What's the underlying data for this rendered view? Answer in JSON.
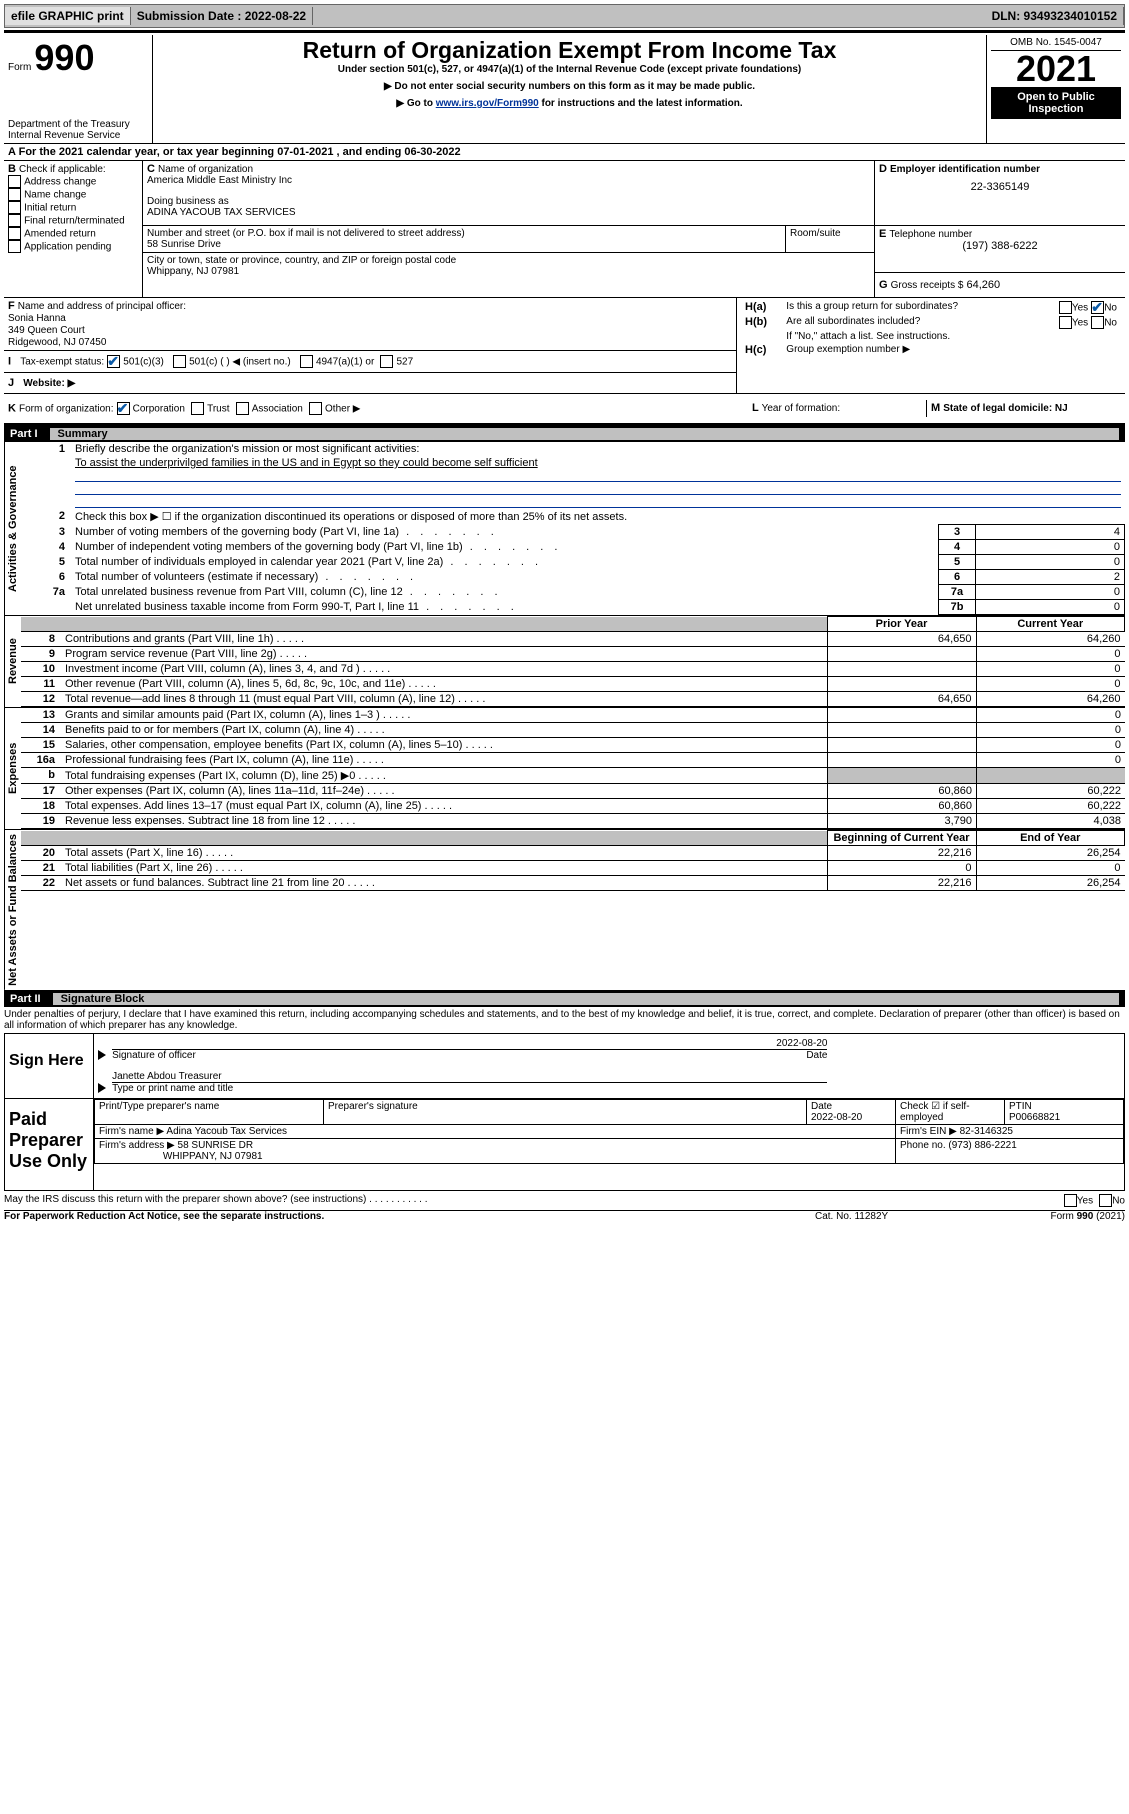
{
  "topbar": {
    "efile": "efile GRAPHIC print",
    "submission": "Submission Date : 2022-08-22",
    "dln": "DLN: 93493234010152"
  },
  "header": {
    "form_label": "Form",
    "form_no": "990",
    "dept": "Department of the Treasury",
    "irs": "Internal Revenue Service",
    "title": "Return of Organization Exempt From Income Tax",
    "sub1": "Under section 501(c), 527, or 4947(a)(1) of the Internal Revenue Code (except private foundations)",
    "sub2": "▶ Do not enter social security numbers on this form as it may be made public.",
    "sub3_pre": "▶ Go to ",
    "sub3_link": "www.irs.gov/Form990",
    "sub3_post": " for instructions and the latest information.",
    "omb": "OMB No. 1545-0047",
    "year": "2021",
    "open": "Open to Public Inspection"
  },
  "A": {
    "line": "For the 2021 calendar year, or tax year beginning 07-01-2021   , and ending 06-30-2022"
  },
  "B": {
    "head": "Check if applicable:",
    "opts": [
      "Address change",
      "Name change",
      "Initial return",
      "Final return/terminated",
      "Amended return",
      "Application pending"
    ]
  },
  "C": {
    "label": "Name of organization",
    "org": "America Middle East Ministry Inc",
    "dba_label": "Doing business as",
    "dba": "ADINA YACOUB TAX SERVICES",
    "street_label": "Number and street (or P.O. box if mail is not delivered to street address)",
    "street": "58 Sunrise Drive",
    "room_label": "Room/suite",
    "city_label": "City or town, state or province, country, and ZIP or foreign postal code",
    "city": "Whippany, NJ  07981"
  },
  "D": {
    "label": "Employer identification number",
    "val": "22-3365149"
  },
  "E": {
    "label": "Telephone number",
    "val": "(197) 388-6222"
  },
  "G": {
    "label": "Gross receipts $",
    "val": "64,260"
  },
  "F": {
    "label": "Name and address of principal officer:",
    "name": "Sonia Hanna",
    "addr1": "349 Queen Court",
    "addr2": "Ridgewood, NJ  07450"
  },
  "I": {
    "label": "Tax-exempt status:",
    "c3": "501(c)(3)",
    "c": "501(c) (  ) ◀ (insert no.)",
    "a": "4947(a)(1) or",
    "s": "527"
  },
  "J": {
    "label": "Website: ▶"
  },
  "H": {
    "a": "Is this a group return for subordinates?",
    "b": "Are all subordinates included?",
    "note": "If \"No,\" attach a list. See instructions.",
    "c": "Group exemption number ▶",
    "yes": "Yes",
    "no": "No"
  },
  "K": {
    "label": "Form of organization:",
    "opts": [
      "Corporation",
      "Trust",
      "Association",
      "Other ▶"
    ]
  },
  "L": {
    "label": "Year of formation:"
  },
  "M": {
    "label": "State of legal domicile: NJ"
  },
  "part1": {
    "pt": "Part I",
    "title": "Summary"
  },
  "summary": {
    "l1": "Briefly describe the organization's mission or most significant activities:",
    "mission": "To assist the underprivilged families in the US and in Egypt so they could become self sufficient",
    "l2": "Check this box ▶ ☐  if the organization discontinued its operations or disposed of more than 25% of its net assets.",
    "rows": [
      {
        "n": "3",
        "t": "Number of voting members of the governing body (Part VI, line 1a)",
        "box": "3",
        "v": "4"
      },
      {
        "n": "4",
        "t": "Number of independent voting members of the governing body (Part VI, line 1b)",
        "box": "4",
        "v": "0"
      },
      {
        "n": "5",
        "t": "Total number of individuals employed in calendar year 2021 (Part V, line 2a)",
        "box": "5",
        "v": "0"
      },
      {
        "n": "6",
        "t": "Total number of volunteers (estimate if necessary)",
        "box": "6",
        "v": "2"
      },
      {
        "n": "7a",
        "t": "Total unrelated business revenue from Part VIII, column (C), line 12",
        "box": "7a",
        "v": "0"
      },
      {
        "n": "",
        "t": "Net unrelated business taxable income from Form 990-T, Part I, line 11",
        "box": "7b",
        "v": "0"
      }
    ]
  },
  "vlabels": {
    "act": "Activities & Governance",
    "rev": "Revenue",
    "exp": "Expenses",
    "net": "Net Assets or Fund Balances"
  },
  "fin": {
    "hdr_py": "Prior Year",
    "hdr_cy": "Current Year",
    "rows_rev": [
      {
        "n": "8",
        "t": "Contributions and grants (Part VIII, line 1h)",
        "py": "64,650",
        "cy": "64,260"
      },
      {
        "n": "9",
        "t": "Program service revenue (Part VIII, line 2g)",
        "py": "",
        "cy": "0"
      },
      {
        "n": "10",
        "t": "Investment income (Part VIII, column (A), lines 3, 4, and 7d )",
        "py": "",
        "cy": "0"
      },
      {
        "n": "11",
        "t": "Other revenue (Part VIII, column (A), lines 5, 6d, 8c, 9c, 10c, and 11e)",
        "py": "",
        "cy": "0"
      },
      {
        "n": "12",
        "t": "Total revenue—add lines 8 through 11 (must equal Part VIII, column (A), line 12)",
        "py": "64,650",
        "cy": "64,260"
      }
    ],
    "rows_exp": [
      {
        "n": "13",
        "t": "Grants and similar amounts paid (Part IX, column (A), lines 1–3 )",
        "py": "",
        "cy": "0"
      },
      {
        "n": "14",
        "t": "Benefits paid to or for members (Part IX, column (A), line 4)",
        "py": "",
        "cy": "0"
      },
      {
        "n": "15",
        "t": "Salaries, other compensation, employee benefits (Part IX, column (A), lines 5–10)",
        "py": "",
        "cy": "0"
      },
      {
        "n": "16a",
        "t": "Professional fundraising fees (Part IX, column (A), line 11e)",
        "py": "",
        "cy": "0"
      },
      {
        "n": "b",
        "t": "Total fundraising expenses (Part IX, column (D), line 25) ▶0",
        "py": "GREY",
        "cy": "GREY"
      },
      {
        "n": "17",
        "t": "Other expenses (Part IX, column (A), lines 11a–11d, 11f–24e)",
        "py": "60,860",
        "cy": "60,222"
      },
      {
        "n": "18",
        "t": "Total expenses. Add lines 13–17 (must equal Part IX, column (A), line 25)",
        "py": "60,860",
        "cy": "60,222"
      },
      {
        "n": "19",
        "t": "Revenue less expenses. Subtract line 18 from line 12",
        "py": "3,790",
        "cy": "4,038"
      }
    ],
    "hdr_bcy": "Beginning of Current Year",
    "hdr_eoy": "End of Year",
    "rows_net": [
      {
        "n": "20",
        "t": "Total assets (Part X, line 16)",
        "py": "22,216",
        "cy": "26,254"
      },
      {
        "n": "21",
        "t": "Total liabilities (Part X, line 26)",
        "py": "0",
        "cy": "0"
      },
      {
        "n": "22",
        "t": "Net assets or fund balances. Subtract line 21 from line 20",
        "py": "22,216",
        "cy": "26,254"
      }
    ]
  },
  "part2": {
    "pt": "Part II",
    "title": "Signature Block"
  },
  "sig_decl": "Under penalties of perjury, I declare that I have examined this return, including accompanying schedules and statements, and to the best of my knowledge and belief, it is true, correct, and complete. Declaration of preparer (other than officer) is based on all information of which preparer has any knowledge.",
  "sign": {
    "here": "Sign Here",
    "sig_of_officer": "Signature of officer",
    "date": "Date",
    "date_val": "2022-08-20",
    "name": "Janette Abdou  Treasurer",
    "name_label": "Type or print name and title"
  },
  "paid": {
    "title": "Paid Preparer Use Only",
    "h1": "Print/Type preparer's name",
    "h2": "Preparer's signature",
    "h3": "Date",
    "h3v": "2022-08-20",
    "h4": "Check ☑ if self-employed",
    "h5": "PTIN",
    "h5v": "P00668821",
    "firm_name_l": "Firm's name    ▶",
    "firm_name": "Adina Yacoub Tax Services",
    "firm_ein_l": "Firm's EIN ▶",
    "firm_ein": "82-3146325",
    "firm_addr_l": "Firm's address ▶",
    "firm_addr1": "58 SUNRISE DR",
    "firm_addr2": "WHIPPANY, NJ  07981",
    "phone_l": "Phone no.",
    "phone": "(973) 886-2221"
  },
  "footer": {
    "q": "May the IRS discuss this return with the preparer shown above? (see instructions)",
    "yes": "Yes",
    "no": "No",
    "pra": "For Paperwork Reduction Act Notice, see the separate instructions.",
    "cat": "Cat. No. 11282Y",
    "form": "Form 990 (2021)"
  }
}
